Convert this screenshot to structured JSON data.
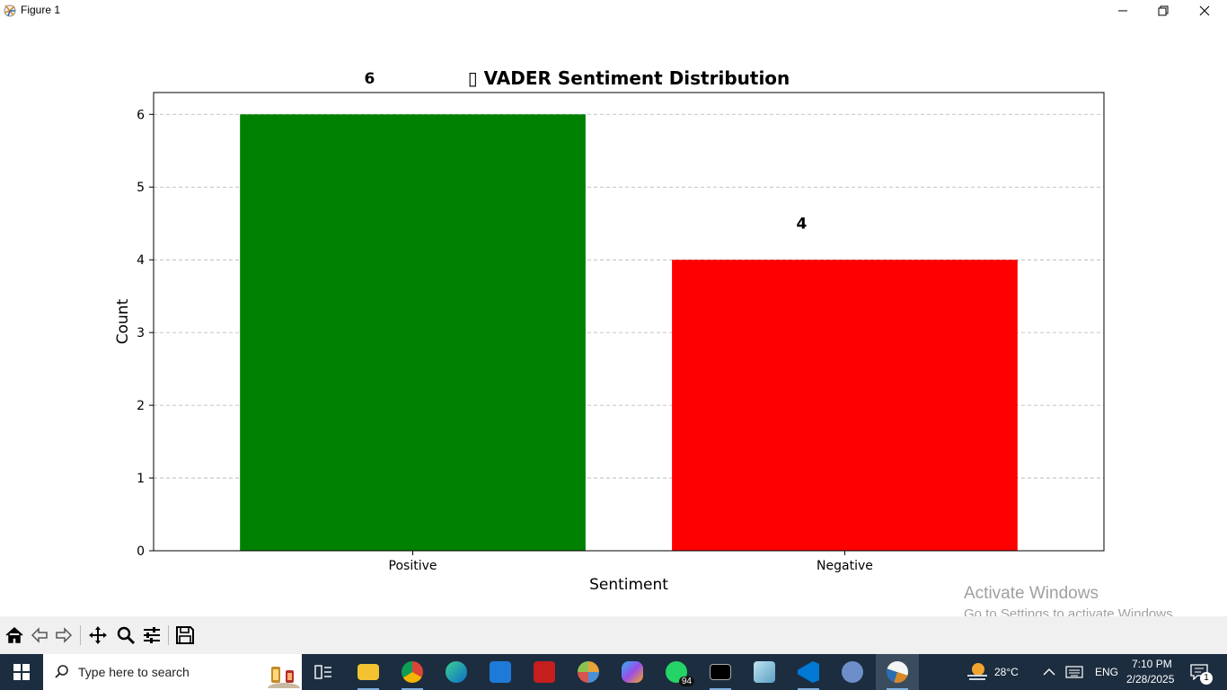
{
  "window": {
    "title": "Figure 1",
    "controls": [
      "minimize-icon",
      "restore-icon",
      "close-icon"
    ]
  },
  "chart_data": {
    "type": "bar",
    "title": "▯ VADER Sentiment Distribution",
    "categories": [
      "Positive",
      "Negative"
    ],
    "values": [
      6,
      4
    ],
    "colors": [
      "#008000",
      "#ff0000"
    ],
    "data_labels": [
      "6",
      "4"
    ],
    "xlabel": "Sentiment",
    "ylabel": "Count",
    "ylim": [
      0,
      6.3
    ],
    "yticks": [
      "0",
      "1",
      "2",
      "3",
      "4",
      "5",
      "6"
    ],
    "grid": "y-dashed",
    "legend": "none"
  },
  "toolbar": {
    "buttons": [
      "home-icon",
      "back-icon",
      "forward-icon",
      "pan-icon",
      "zoom-icon",
      "configure-subplots-icon",
      "save-icon"
    ]
  },
  "watermark": {
    "line1": "Activate Windows",
    "line2": "Go to Settings to activate Windows."
  },
  "taskbar": {
    "search_placeholder": "Type here to search",
    "apps": [
      "task-view-icon",
      "file-explorer-icon",
      "chrome-icon",
      "edge-icon",
      "app-store-icon",
      "video-player-icon",
      "paint-icon",
      "copilot-icon",
      "whatsapp-icon",
      "terminal-icon",
      "notepad-icon",
      "vscode-icon",
      "r-icon",
      "python-figure-icon"
    ],
    "whatsapp_badge": "94",
    "weather": "28°C",
    "language": "ENG",
    "time": "7:10 PM",
    "date": "2/28/2025",
    "notification_count": "1"
  }
}
